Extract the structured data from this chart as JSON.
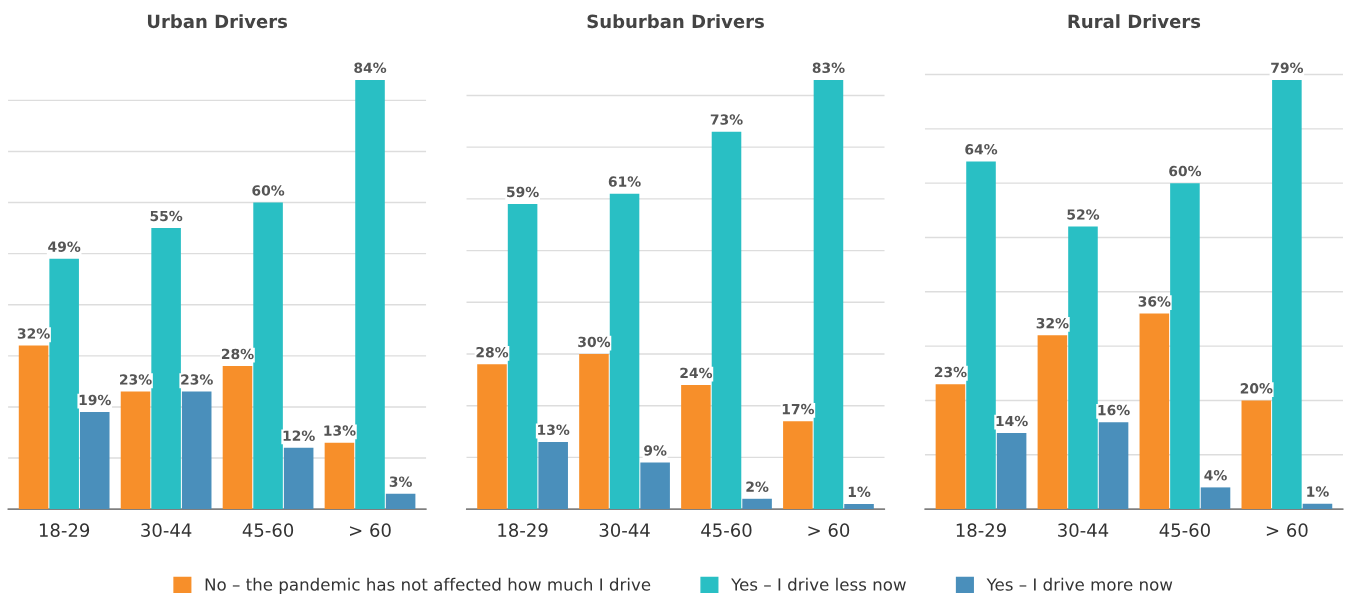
{
  "chart_data": [
    {
      "type": "bar",
      "title": "Urban Drivers",
      "categories": [
        "18-29",
        "30-44",
        "45-60",
        "> 60"
      ],
      "series": [
        {
          "name": "No – the pandemic has not affected how much I drive",
          "color": "#f78f2a",
          "values": [
            32,
            23,
            28,
            13
          ],
          "value_labels": [
            "32%",
            "23%",
            "28%",
            "13%"
          ]
        },
        {
          "name": "Yes – I drive less now",
          "color": "#29bfc4",
          "values": [
            49,
            55,
            60,
            84
          ],
          "value_labels": [
            "49%",
            "55%",
            "60%",
            "84%"
          ]
        },
        {
          "name": "Yes – I drive more now",
          "color": "#4a8fbb",
          "values": [
            19,
            23,
            12,
            3
          ],
          "value_labels": [
            "19%",
            "23%",
            "12%",
            "3%"
          ]
        }
      ],
      "grid": "y",
      "tick_labels": "x",
      "legend": "bottom"
    },
    {
      "type": "bar",
      "title": "Suburban Drivers",
      "categories": [
        "18-29",
        "30-44",
        "45-60",
        "> 60"
      ],
      "series": [
        {
          "color": "#f78f2a",
          "values": [
            28,
            30,
            24,
            17
          ],
          "value_labels": [
            "28%",
            "30%",
            "24%",
            "17%"
          ]
        },
        {
          "color": "#29bfc4",
          "values": [
            59,
            61,
            73,
            83
          ],
          "value_labels": [
            "59%",
            "61%",
            "73%",
            "83%"
          ]
        },
        {
          "color": "#4a8fbb",
          "values": [
            13,
            9,
            2,
            1
          ],
          "value_labels": [
            "13%",
            "9%",
            "2%",
            "1%"
          ]
        }
      ],
      "grid": "y",
      "tick_labels": "x"
    },
    {
      "type": "bar",
      "title": "Rural Drivers",
      "categories": [
        "18-29",
        "30-44",
        "45-60",
        "> 60"
      ],
      "series": [
        {
          "color": "#f78f2a",
          "values": [
            23,
            32,
            36,
            20
          ],
          "value_labels": [
            "23%",
            "32%",
            "36%",
            "20%"
          ]
        },
        {
          "color": "#29bfc4",
          "values": [
            64,
            52,
            60,
            79
          ],
          "value_labels": [
            "64%",
            "52%",
            "60%",
            "79%"
          ]
        },
        {
          "color": "#4a8fbb",
          "values": [
            14,
            16,
            4,
            1
          ],
          "value_labels": [
            "14%",
            "16%",
            "4%",
            "1%"
          ]
        }
      ],
      "grid": "y",
      "tick_labels": "x"
    }
  ]
}
